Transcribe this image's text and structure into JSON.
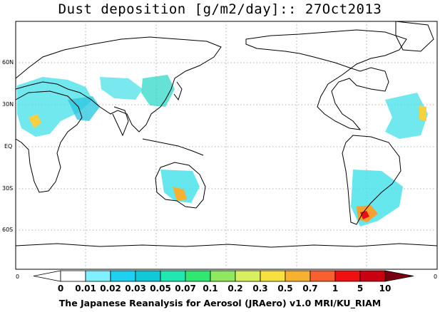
{
  "title": "Dust deposition [g/m2/day]:: 27Oct2013",
  "footer": "The Japanese Reanalysis for Aerosol (JRAero) v1.0 MRI/KU_RIAM",
  "latitude_labels": [
    "60N",
    "30N",
    "EQ",
    "30S",
    "60S"
  ],
  "colorbar": {
    "edge_left": "0",
    "edge_right": "0",
    "levels": [
      "0",
      "0.01",
      "0.02",
      "0.03",
      "0.05",
      "0.07",
      "0.1",
      "0.2",
      "0.3",
      "0.5",
      "0.7",
      "1",
      "5",
      "10"
    ],
    "colors": [
      "#ffffff",
      "#80f0ff",
      "#20d0f0",
      "#10c8d8",
      "#20e8b0",
      "#30e870",
      "#90e860",
      "#d8f060",
      "#f8e040",
      "#f8b030",
      "#f86030",
      "#f01010",
      "#c80010",
      "#900010",
      "#780010"
    ]
  }
}
